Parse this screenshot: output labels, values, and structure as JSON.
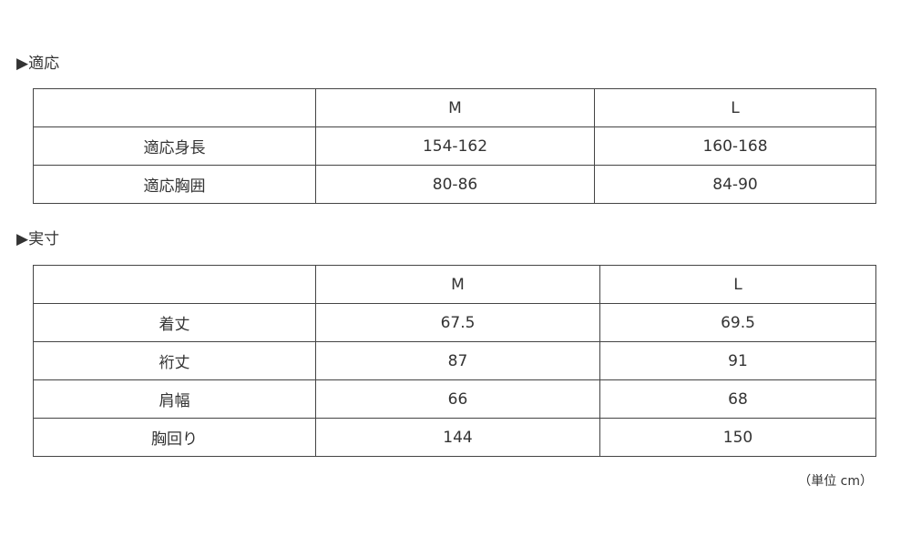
{
  "sections": [
    {
      "heading": "▶適応",
      "columns": [
        "",
        "M",
        "L"
      ],
      "rows": [
        [
          "適応身長",
          "154-162",
          "160-168"
        ],
        [
          "適応胸囲",
          "80-86",
          "84-90"
        ]
      ]
    },
    {
      "heading": "▶実寸",
      "columns": [
        "",
        "M",
        "L"
      ],
      "rows": [
        [
          "着丈",
          "67.5",
          "69.5"
        ],
        [
          "裄丈",
          "87",
          "91"
        ],
        [
          "肩幅",
          "66",
          "68"
        ],
        [
          "胸回り",
          "144",
          "150"
        ]
      ]
    }
  ],
  "unit_note": "（単位 cm）"
}
